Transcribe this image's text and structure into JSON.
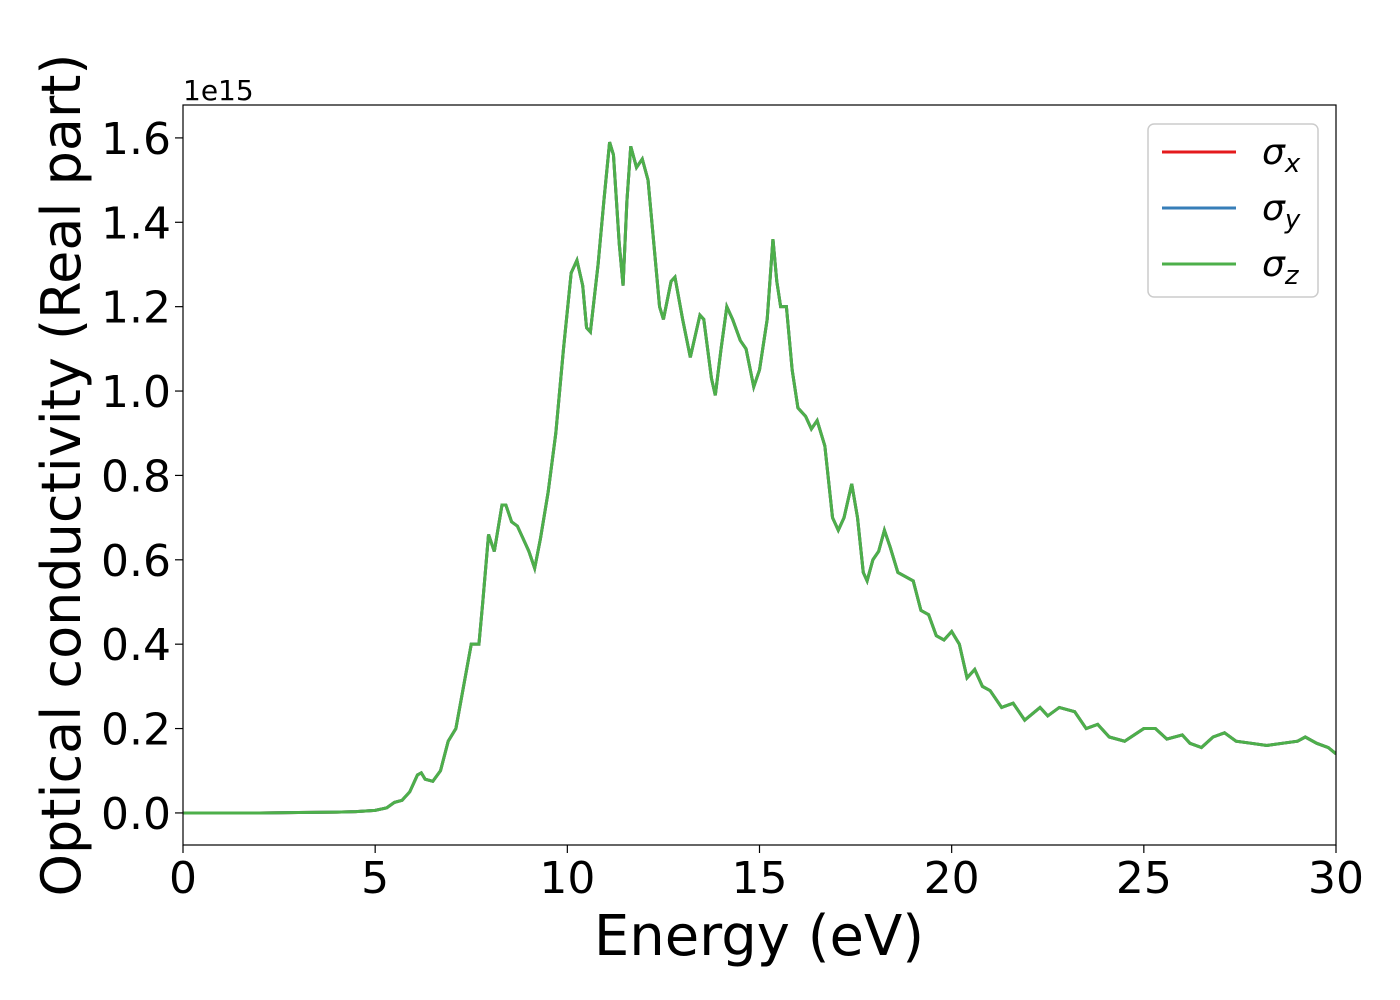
{
  "chart_data": {
    "type": "line",
    "xlabel": "Energy (eV)",
    "ylabel": "Optical conductivity (Real part)",
    "y_offset_text": "1e15",
    "xlim": [
      0,
      30
    ],
    "xticks": [
      0,
      5,
      10,
      15,
      20,
      25,
      30
    ],
    "ylim": [
      -0.076,
      1.678
    ],
    "yticks": [
      {
        "value": 0,
        "label": "0.0"
      },
      0.2,
      0.4,
      0.6,
      0.8,
      {
        "value": 1,
        "label": "1.0"
      },
      1.2,
      1.4,
      1.6
    ],
    "grid": false,
    "legend": "upper right",
    "x": [
      0,
      1,
      2,
      3,
      4,
      4.5,
      5,
      5.3,
      5.5,
      5.7,
      5.9,
      6.1,
      6.2,
      6.3,
      6.5,
      6.7,
      6.9,
      7.1,
      7.3,
      7.5,
      7.7,
      7.8,
      7.95,
      8.1,
      8.3,
      8.4,
      8.55,
      8.7,
      8.9,
      9.0,
      9.15,
      9.3,
      9.5,
      9.7,
      9.9,
      10.1,
      10.25,
      10.4,
      10.5,
      10.6,
      10.8,
      10.95,
      11.1,
      11.2,
      11.35,
      11.45,
      11.55,
      11.65,
      11.8,
      11.95,
      12.1,
      12.25,
      12.4,
      12.5,
      12.7,
      12.8,
      13.0,
      13.2,
      13.45,
      13.55,
      13.75,
      13.85,
      14.0,
      14.15,
      14.3,
      14.5,
      14.65,
      14.85,
      15.0,
      15.2,
      15.35,
      15.45,
      15.55,
      15.7,
      15.85,
      16.0,
      16.2,
      16.35,
      16.5,
      16.7,
      16.9,
      17.05,
      17.2,
      17.4,
      17.55,
      17.7,
      17.8,
      17.95,
      18.1,
      18.25,
      18.4,
      18.6,
      18.8,
      19.0,
      19.2,
      19.4,
      19.6,
      19.8,
      20.0,
      20.2,
      20.4,
      20.6,
      20.8,
      21.0,
      21.3,
      21.6,
      21.9,
      22.3,
      22.5,
      22.8,
      23.2,
      23.5,
      23.8,
      24.1,
      24.5,
      25.0,
      25.3,
      25.6,
      26.0,
      26.2,
      26.5,
      26.8,
      27.1,
      27.4,
      27.8,
      28.2,
      28.6,
      29.0,
      29.2,
      29.5,
      29.8,
      30.0
    ],
    "series": [
      {
        "name": "σx",
        "color": "#e41a1c",
        "values": [
          0,
          0,
          0,
          0.001,
          0.002,
          0.003,
          0.006,
          0.012,
          0.025,
          0.03,
          0.05,
          0.09,
          0.095,
          0.08,
          0.075,
          0.1,
          0.17,
          0.2,
          0.3,
          0.4,
          0.4,
          0.5,
          0.66,
          0.62,
          0.73,
          0.73,
          0.69,
          0.68,
          0.64,
          0.62,
          0.58,
          0.65,
          0.76,
          0.9,
          1.1,
          1.28,
          1.31,
          1.25,
          1.15,
          1.14,
          1.3,
          1.45,
          1.59,
          1.56,
          1.35,
          1.25,
          1.45,
          1.58,
          1.53,
          1.55,
          1.5,
          1.35,
          1.2,
          1.17,
          1.26,
          1.27,
          1.17,
          1.08,
          1.18,
          1.17,
          1.03,
          0.99,
          1.1,
          1.2,
          1.17,
          1.12,
          1.1,
          1.01,
          1.05,
          1.17,
          1.36,
          1.26,
          1.2,
          1.2,
          1.05,
          0.96,
          0.94,
          0.91,
          0.93,
          0.87,
          0.7,
          0.67,
          0.7,
          0.78,
          0.7,
          0.57,
          0.55,
          0.6,
          0.62,
          0.67,
          0.63,
          0.57,
          0.56,
          0.55,
          0.48,
          0.47,
          0.42,
          0.41,
          0.43,
          0.4,
          0.32,
          0.34,
          0.3,
          0.29,
          0.25,
          0.26,
          0.22,
          0.25,
          0.23,
          0.25,
          0.24,
          0.2,
          0.21,
          0.18,
          0.17,
          0.2,
          0.2,
          0.175,
          0.185,
          0.165,
          0.155,
          0.18,
          0.19,
          0.17,
          0.165,
          0.16,
          0.165,
          0.17,
          0.18,
          0.165,
          0.155,
          0.14
        ]
      },
      {
        "name": "σy",
        "color": "#377eb8",
        "values": [
          0,
          0,
          0,
          0.001,
          0.002,
          0.003,
          0.006,
          0.012,
          0.025,
          0.03,
          0.05,
          0.09,
          0.095,
          0.08,
          0.075,
          0.1,
          0.17,
          0.2,
          0.3,
          0.4,
          0.4,
          0.5,
          0.66,
          0.62,
          0.73,
          0.73,
          0.69,
          0.68,
          0.64,
          0.62,
          0.58,
          0.65,
          0.76,
          0.9,
          1.1,
          1.28,
          1.31,
          1.25,
          1.15,
          1.14,
          1.3,
          1.45,
          1.59,
          1.56,
          1.35,
          1.25,
          1.45,
          1.58,
          1.53,
          1.55,
          1.5,
          1.35,
          1.2,
          1.17,
          1.26,
          1.27,
          1.17,
          1.08,
          1.18,
          1.17,
          1.03,
          0.99,
          1.1,
          1.2,
          1.17,
          1.12,
          1.1,
          1.01,
          1.05,
          1.17,
          1.36,
          1.26,
          1.2,
          1.2,
          1.05,
          0.96,
          0.94,
          0.91,
          0.93,
          0.87,
          0.7,
          0.67,
          0.7,
          0.78,
          0.7,
          0.57,
          0.55,
          0.6,
          0.62,
          0.67,
          0.63,
          0.57,
          0.56,
          0.55,
          0.48,
          0.47,
          0.42,
          0.41,
          0.43,
          0.4,
          0.32,
          0.34,
          0.3,
          0.29,
          0.25,
          0.26,
          0.22,
          0.25,
          0.23,
          0.25,
          0.24,
          0.2,
          0.21,
          0.18,
          0.17,
          0.2,
          0.2,
          0.175,
          0.185,
          0.165,
          0.155,
          0.18,
          0.19,
          0.17,
          0.165,
          0.16,
          0.165,
          0.17,
          0.18,
          0.165,
          0.155,
          0.14
        ]
      },
      {
        "name": "σz",
        "color": "#4daf4a",
        "values": [
          0,
          0,
          0,
          0.001,
          0.002,
          0.003,
          0.006,
          0.012,
          0.025,
          0.03,
          0.05,
          0.09,
          0.095,
          0.08,
          0.075,
          0.1,
          0.17,
          0.2,
          0.3,
          0.4,
          0.4,
          0.5,
          0.66,
          0.62,
          0.73,
          0.73,
          0.69,
          0.68,
          0.64,
          0.62,
          0.58,
          0.65,
          0.76,
          0.9,
          1.1,
          1.28,
          1.31,
          1.25,
          1.15,
          1.14,
          1.3,
          1.45,
          1.59,
          1.56,
          1.35,
          1.25,
          1.45,
          1.58,
          1.53,
          1.55,
          1.5,
          1.35,
          1.2,
          1.17,
          1.26,
          1.27,
          1.17,
          1.08,
          1.18,
          1.17,
          1.03,
          0.99,
          1.1,
          1.2,
          1.17,
          1.12,
          1.1,
          1.01,
          1.05,
          1.17,
          1.36,
          1.26,
          1.2,
          1.2,
          1.05,
          0.96,
          0.94,
          0.91,
          0.93,
          0.87,
          0.7,
          0.67,
          0.7,
          0.78,
          0.7,
          0.57,
          0.55,
          0.6,
          0.62,
          0.67,
          0.63,
          0.57,
          0.56,
          0.55,
          0.48,
          0.47,
          0.42,
          0.41,
          0.43,
          0.4,
          0.32,
          0.34,
          0.3,
          0.29,
          0.25,
          0.26,
          0.22,
          0.25,
          0.23,
          0.25,
          0.24,
          0.2,
          0.21,
          0.18,
          0.17,
          0.2,
          0.2,
          0.175,
          0.185,
          0.165,
          0.155,
          0.18,
          0.19,
          0.17,
          0.165,
          0.16,
          0.165,
          0.17,
          0.18,
          0.165,
          0.155,
          0.14
        ]
      }
    ]
  }
}
